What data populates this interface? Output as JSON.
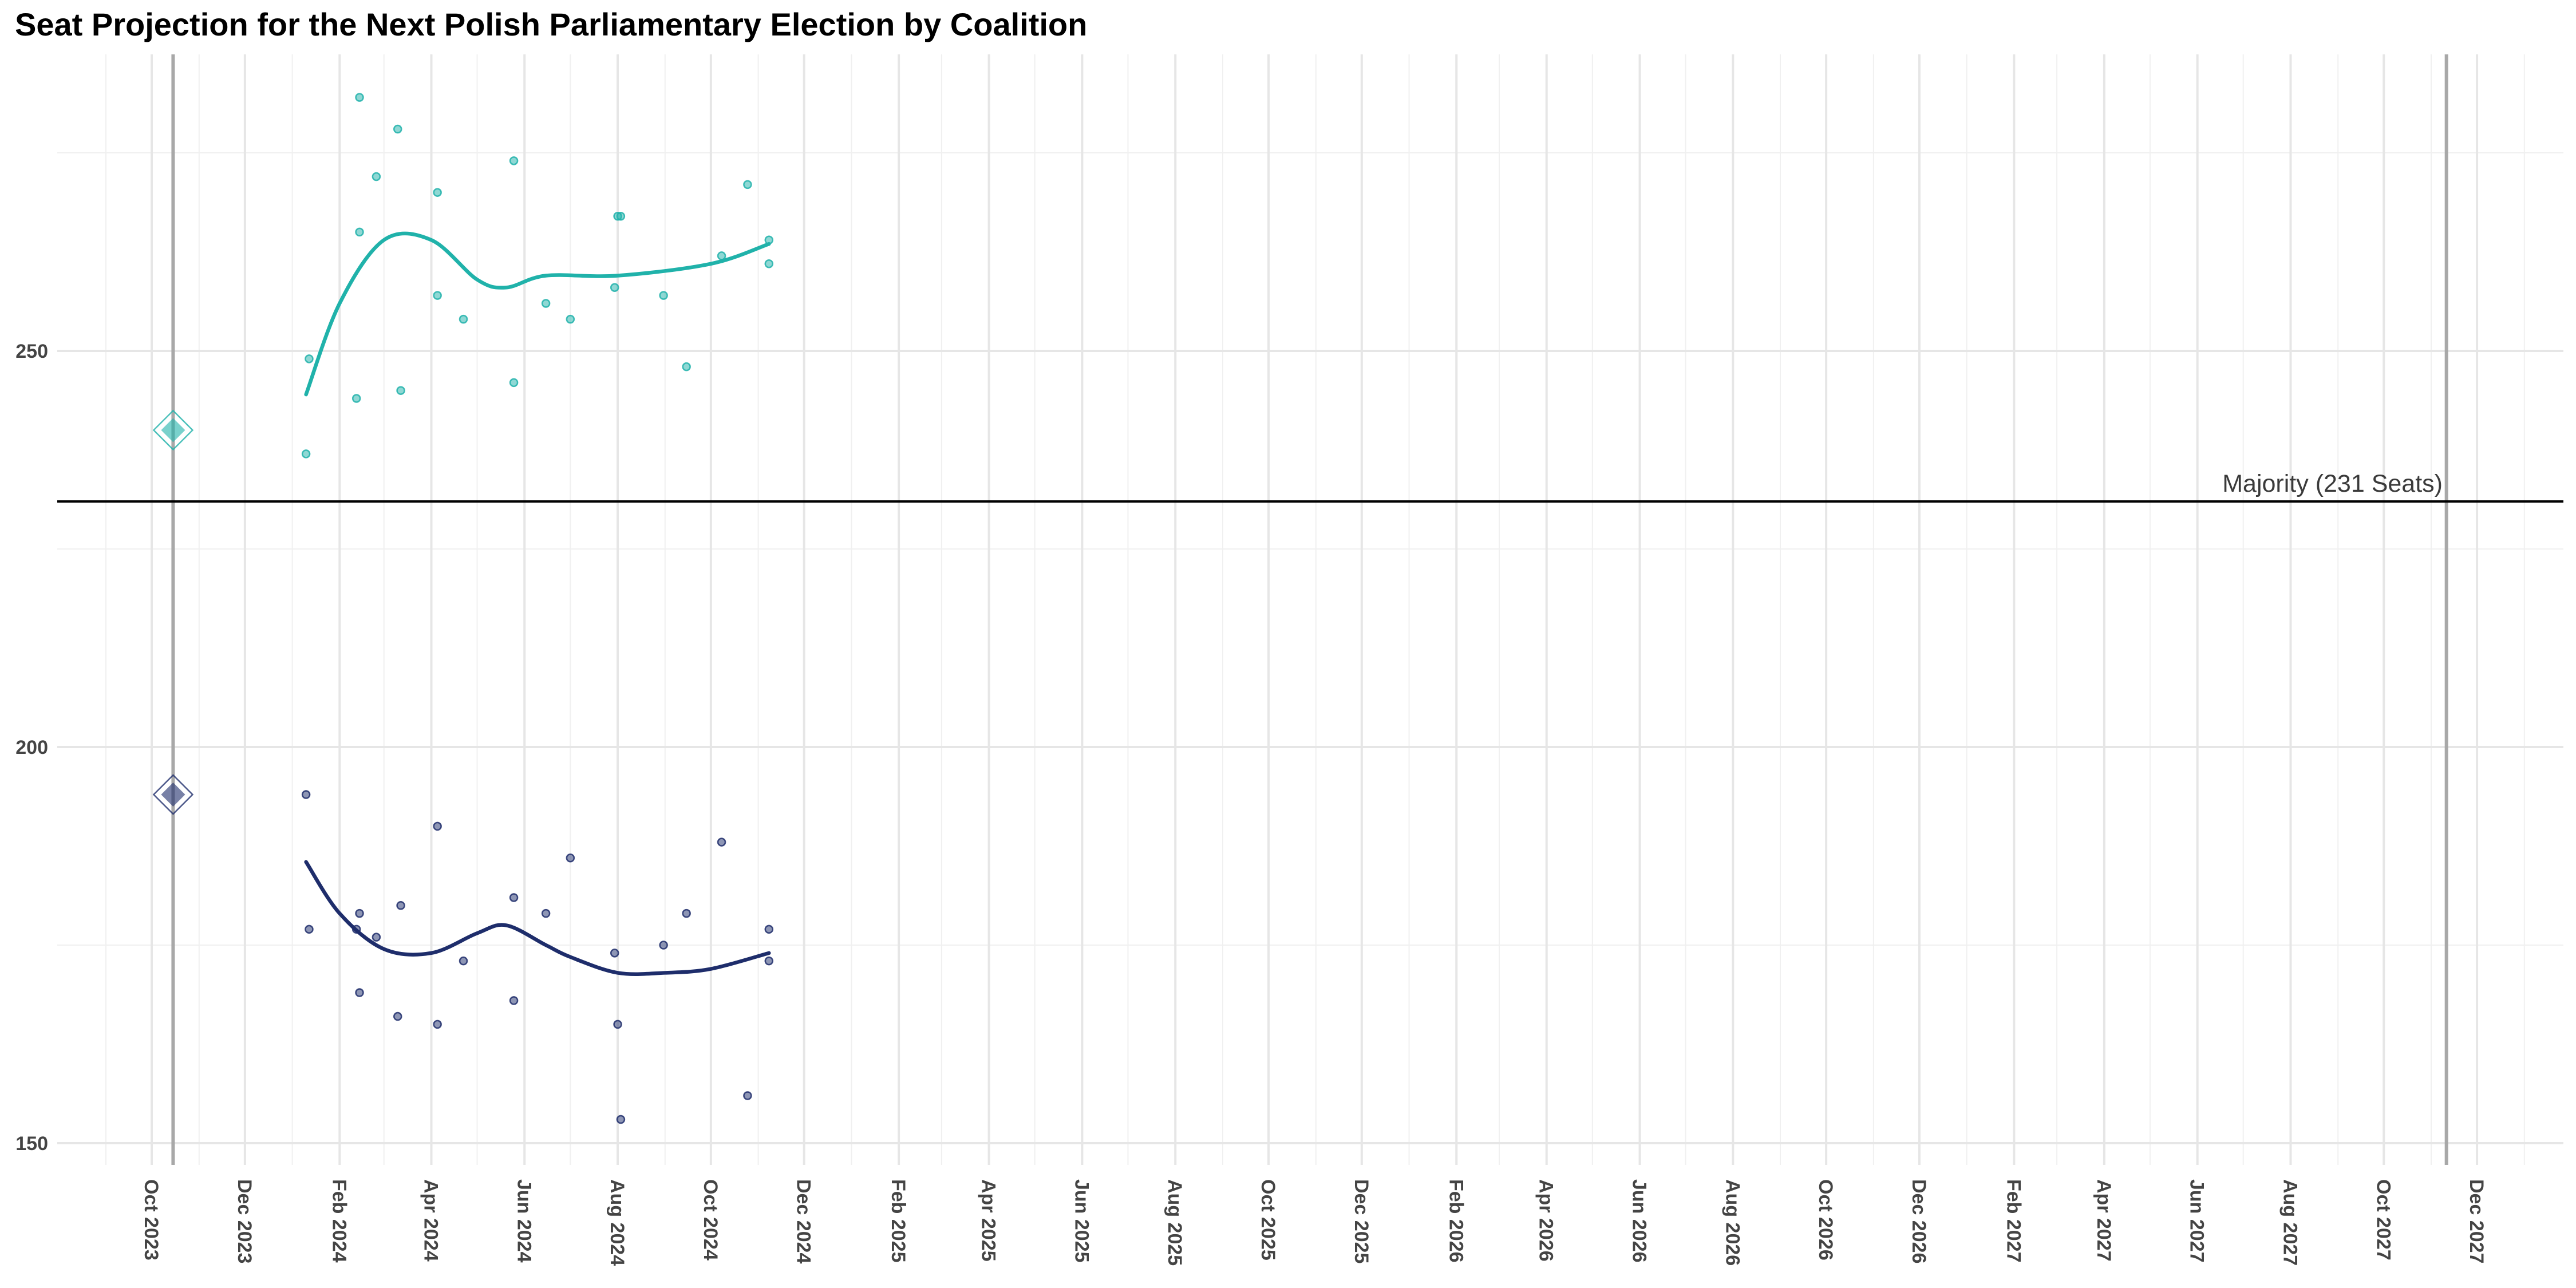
{
  "chart_data": {
    "type": "scatter",
    "title": "Seat Projection for the Next Polish Parliamentary Election by Coalition",
    "xlabel": "",
    "ylabel": "",
    "x_range": [
      "2023-09-01",
      "2027-12-31"
    ],
    "ylim": [
      147,
      288
    ],
    "y_ticks": [
      150,
      200,
      250
    ],
    "x_tick_labels": [
      "Oct 2023",
      "Dec 2023",
      "Feb 2024",
      "Apr 2024",
      "Jun 2024",
      "Aug 2024",
      "Oct 2024",
      "Dec 2024",
      "Feb 2025",
      "Apr 2025",
      "Jun 2025",
      "Aug 2025",
      "Oct 2025",
      "Dec 2025",
      "Feb 2026",
      "Apr 2026",
      "Jun 2026",
      "Aug 2026",
      "Oct 2026",
      "Dec 2026",
      "Feb 2027",
      "Apr 2027",
      "Jun 2027",
      "Aug 2027",
      "Oct 2027",
      "Dec 2027"
    ],
    "grid": true,
    "legend": "none",
    "vertical_lines": [
      "2023-10-15",
      "2027-11-11"
    ],
    "majority": {
      "value": 231,
      "label": "Majority (231 Seats)"
    },
    "series": [
      {
        "color": "#20b2aa",
        "election_result": {
          "x": "2023-10-15",
          "y": 240
        },
        "points": [
          {
            "x": "2024-01-10",
            "y": 237
          },
          {
            "x": "2024-01-12",
            "y": 249
          },
          {
            "x": "2024-02-12",
            "y": 244
          },
          {
            "x": "2024-02-14",
            "y": 282
          },
          {
            "x": "2024-02-14",
            "y": 265
          },
          {
            "x": "2024-02-25",
            "y": 272
          },
          {
            "x": "2024-03-10",
            "y": 278
          },
          {
            "x": "2024-03-12",
            "y": 245
          },
          {
            "x": "2024-04-05",
            "y": 257
          },
          {
            "x": "2024-04-05",
            "y": 270
          },
          {
            "x": "2024-04-22",
            "y": 254
          },
          {
            "x": "2024-05-25",
            "y": 274
          },
          {
            "x": "2024-05-25",
            "y": 246
          },
          {
            "x": "2024-06-15",
            "y": 256
          },
          {
            "x": "2024-07-01",
            "y": 254
          },
          {
            "x": "2024-07-30",
            "y": 258
          },
          {
            "x": "2024-08-01",
            "y": 267
          },
          {
            "x": "2024-08-03",
            "y": 267
          },
          {
            "x": "2024-08-31",
            "y": 257
          },
          {
            "x": "2024-09-15",
            "y": 248
          },
          {
            "x": "2024-10-08",
            "y": 262
          },
          {
            "x": "2024-10-25",
            "y": 271
          },
          {
            "x": "2024-11-08",
            "y": 264
          },
          {
            "x": "2024-11-08",
            "y": 261
          }
        ],
        "trend": [
          {
            "x": "2024-01-10",
            "y": 244.5
          },
          {
            "x": "2024-02-01",
            "y": 256
          },
          {
            "x": "2024-03-01",
            "y": 264
          },
          {
            "x": "2024-04-01",
            "y": 264
          },
          {
            "x": "2024-05-01",
            "y": 259
          },
          {
            "x": "2024-05-20",
            "y": 258
          },
          {
            "x": "2024-06-15",
            "y": 259.5
          },
          {
            "x": "2024-08-01",
            "y": 259.5
          },
          {
            "x": "2024-10-01",
            "y": 261
          },
          {
            "x": "2024-11-08",
            "y": 263.5
          }
        ]
      },
      {
        "color": "#1e2d6b",
        "election_result": {
          "x": "2023-10-15",
          "y": 194
        },
        "points": [
          {
            "x": "2024-01-10",
            "y": 194
          },
          {
            "x": "2024-01-12",
            "y": 177
          },
          {
            "x": "2024-02-12",
            "y": 177
          },
          {
            "x": "2024-02-14",
            "y": 169
          },
          {
            "x": "2024-02-14",
            "y": 179
          },
          {
            "x": "2024-02-25",
            "y": 176
          },
          {
            "x": "2024-03-10",
            "y": 166
          },
          {
            "x": "2024-03-12",
            "y": 180
          },
          {
            "x": "2024-04-05",
            "y": 165
          },
          {
            "x": "2024-04-05",
            "y": 190
          },
          {
            "x": "2024-04-22",
            "y": 173
          },
          {
            "x": "2024-05-25",
            "y": 168
          },
          {
            "x": "2024-05-25",
            "y": 181
          },
          {
            "x": "2024-06-15",
            "y": 179
          },
          {
            "x": "2024-07-01",
            "y": 186
          },
          {
            "x": "2024-07-30",
            "y": 174
          },
          {
            "x": "2024-08-01",
            "y": 165
          },
          {
            "x": "2024-08-03",
            "y": 153
          },
          {
            "x": "2024-08-31",
            "y": 175
          },
          {
            "x": "2024-09-15",
            "y": 179
          },
          {
            "x": "2024-10-08",
            "y": 188
          },
          {
            "x": "2024-10-25",
            "y": 156
          },
          {
            "x": "2024-11-08",
            "y": 177
          },
          {
            "x": "2024-11-08",
            "y": 173
          }
        ],
        "trend": [
          {
            "x": "2024-01-10",
            "y": 185.5
          },
          {
            "x": "2024-02-01",
            "y": 179
          },
          {
            "x": "2024-03-01",
            "y": 174.5
          },
          {
            "x": "2024-04-01",
            "y": 174
          },
          {
            "x": "2024-05-01",
            "y": 176.5
          },
          {
            "x": "2024-05-20",
            "y": 177.5
          },
          {
            "x": "2024-06-15",
            "y": 175
          },
          {
            "x": "2024-07-01",
            "y": 173.5
          },
          {
            "x": "2024-08-01",
            "y": 171.5
          },
          {
            "x": "2024-09-01",
            "y": 171.5
          },
          {
            "x": "2024-10-01",
            "y": 172
          },
          {
            "x": "2024-11-08",
            "y": 174
          }
        ]
      }
    ]
  }
}
